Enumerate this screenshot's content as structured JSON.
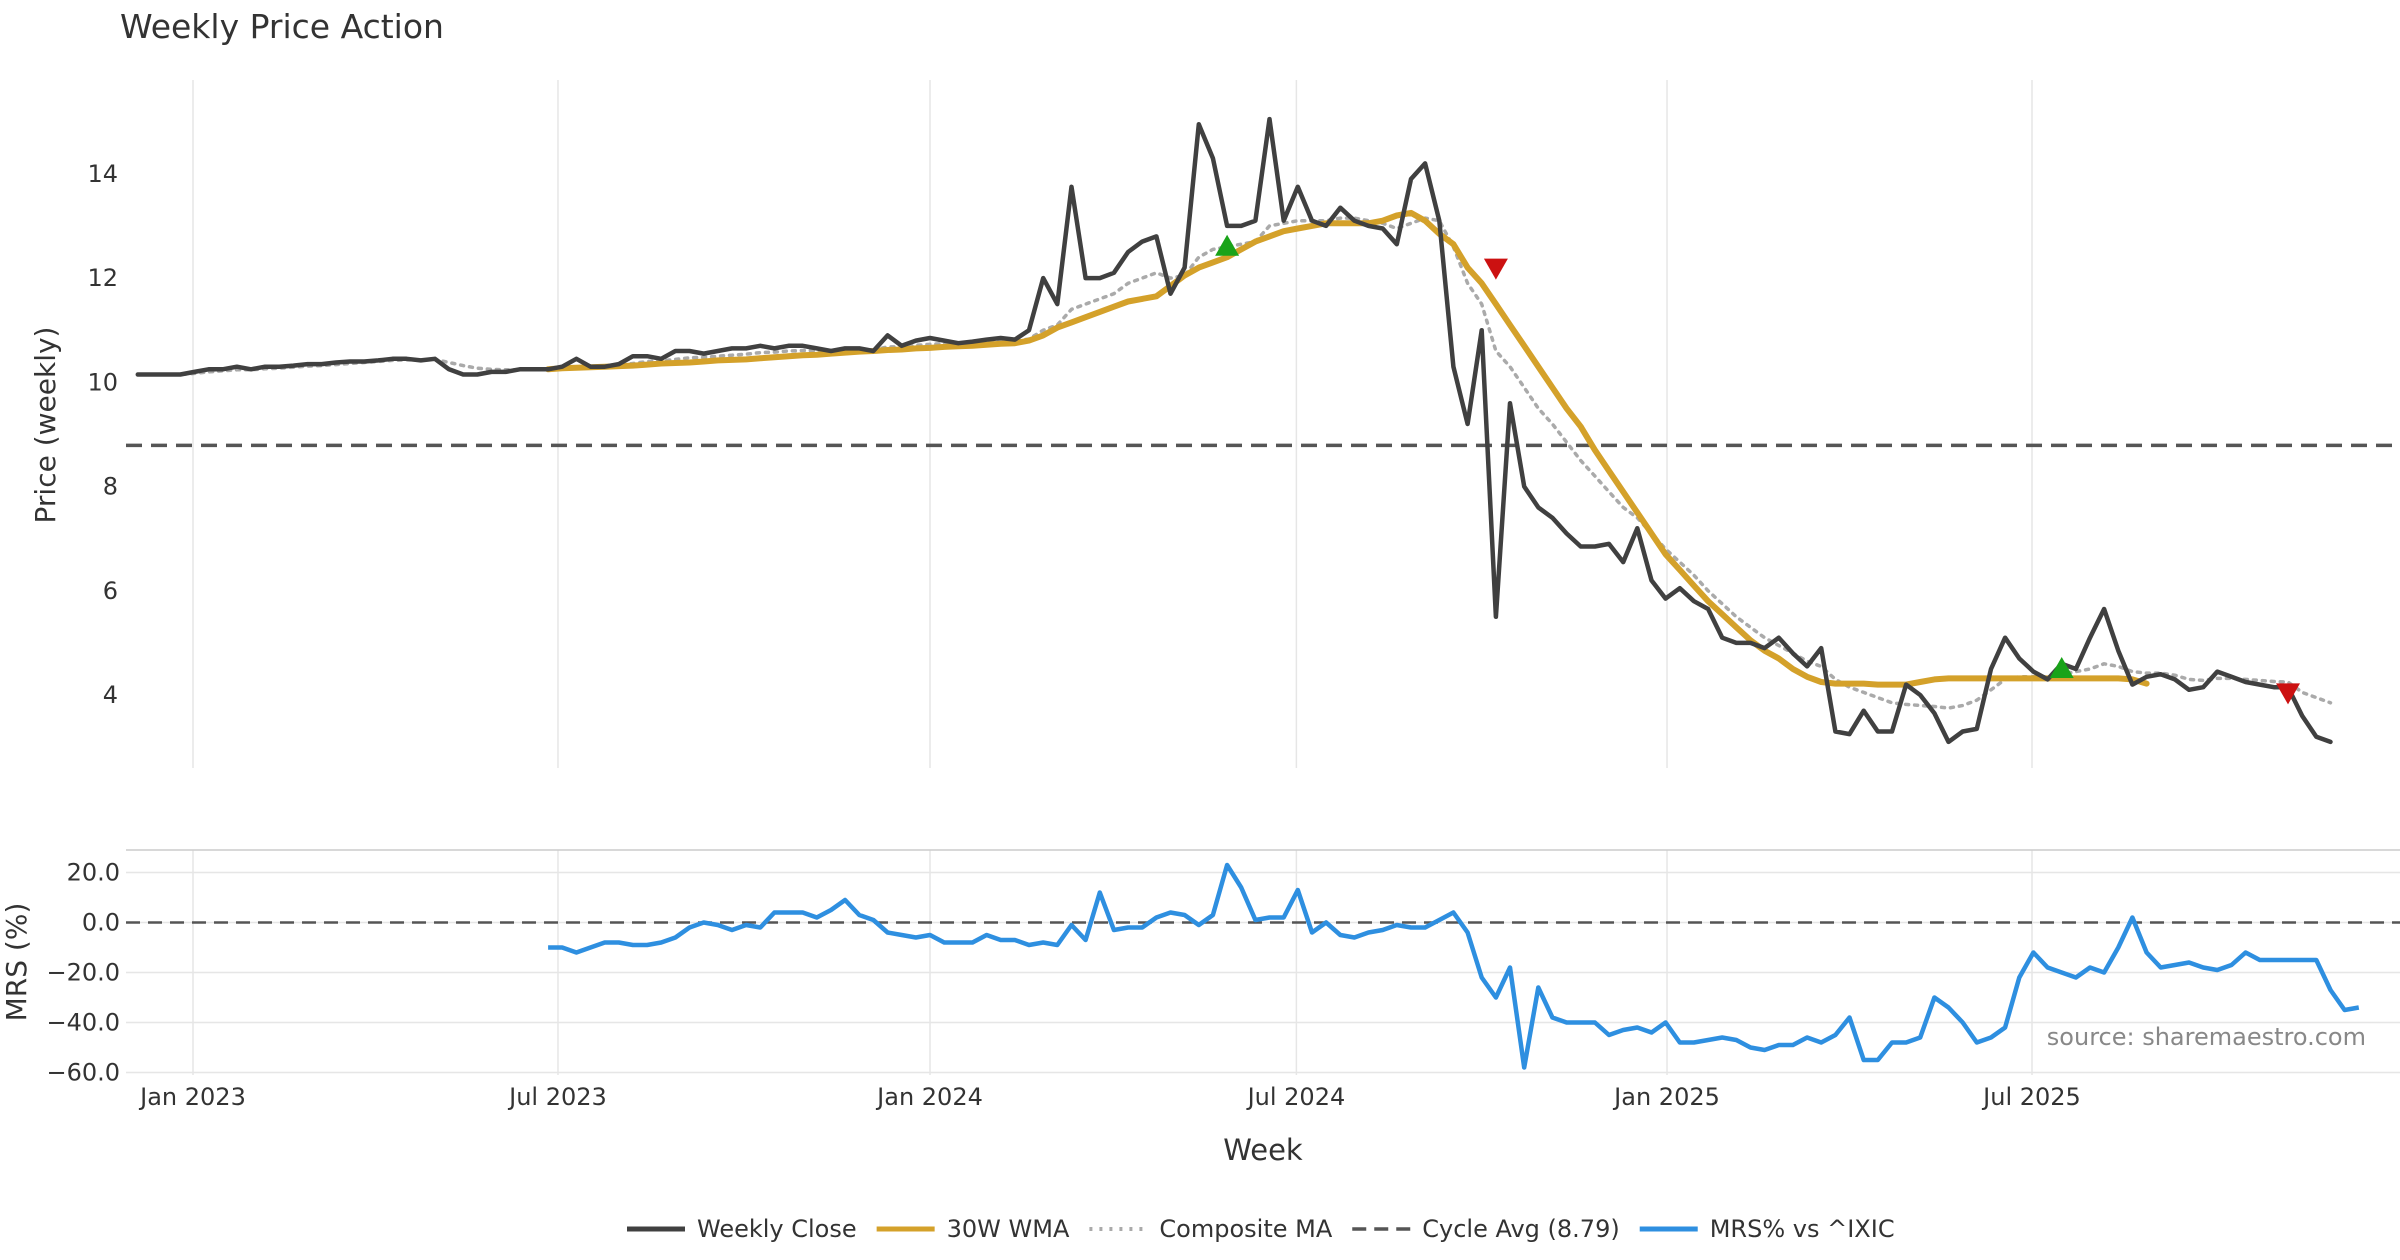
{
  "colors": {
    "close": "#404040",
    "wma": "#d4a12a",
    "composite": "#aaaaaa",
    "cycle": "#555555",
    "mrs": "#2e8fe0",
    "buy": "#19a319",
    "sell": "#cc1111",
    "grid": "#e6e6e6",
    "source": "#888888"
  },
  "chart_data": [
    {
      "type": "line",
      "panel": "price",
      "title": "Weekly Price Action",
      "xlabel": "Week",
      "ylabel": "Price (weekly)",
      "start_date": "2022-12-05",
      "week_step": 1,
      "xlim_weeks": [
        0,
        153
      ],
      "ylim": [
        2.6,
        15.8
      ],
      "yticks": [
        4,
        6,
        8,
        10,
        12,
        14
      ],
      "xticks": [
        {
          "label": "Jan 2023",
          "week": 3.9
        },
        {
          "label": "Jul 2023",
          "week": 29.7
        },
        {
          "label": "Jan 2024",
          "week": 56.0
        },
        {
          "label": "Jul 2024",
          "week": 81.9
        },
        {
          "label": "Jan 2025",
          "week": 108.1
        },
        {
          "label": "Jul 2025",
          "week": 133.9
        }
      ],
      "cycle_avg": 8.79,
      "series": [
        {
          "name": "Weekly Close",
          "key": "close",
          "values": [
            10.15,
            10.15,
            10.15,
            10.15,
            10.2,
            10.25,
            10.25,
            10.3,
            10.25,
            10.3,
            10.3,
            10.32,
            10.35,
            10.35,
            10.38,
            10.4,
            10.4,
            10.42,
            10.45,
            10.45,
            10.42,
            10.45,
            10.25,
            10.15,
            10.15,
            10.2,
            10.2,
            10.25,
            10.25,
            10.25,
            10.3,
            10.45,
            10.3,
            10.3,
            10.35,
            10.5,
            10.5,
            10.45,
            10.6,
            10.6,
            10.55,
            10.6,
            10.65,
            10.65,
            10.7,
            10.65,
            10.7,
            10.7,
            10.65,
            10.6,
            10.65,
            10.65,
            10.6,
            10.9,
            10.7,
            10.8,
            10.85,
            10.8,
            10.75,
            10.78,
            10.82,
            10.85,
            10.82,
            11.0,
            12.0,
            11.5,
            13.75,
            12.0,
            12.0,
            12.1,
            12.5,
            12.7,
            12.8,
            11.7,
            12.2,
            14.95,
            14.3,
            13.0,
            13.0,
            13.1,
            15.05,
            13.1,
            13.75,
            13.1,
            13.0,
            13.35,
            13.1,
            13.0,
            12.95,
            12.65,
            13.9,
            14.2,
            13.1,
            10.3,
            9.2,
            11.0,
            5.5,
            9.6,
            8.0,
            7.6,
            7.4,
            7.1,
            6.85,
            6.85,
            6.9,
            6.55,
            7.2,
            6.2,
            5.85,
            6.05,
            5.8,
            5.65,
            5.1,
            5.0,
            5.0,
            4.9,
            5.1,
            4.8,
            4.55,
            4.9,
            3.3,
            3.25,
            3.7,
            3.3,
            3.3,
            4.2,
            4.0,
            3.65,
            3.1,
            3.3,
            3.35,
            4.5,
            5.1,
            4.7,
            4.45,
            4.3,
            4.6,
            4.5,
            5.1,
            5.65,
            4.85,
            4.2,
            4.35,
            4.4,
            4.3,
            4.1,
            4.15,
            4.45,
            4.35,
            4.25,
            4.2,
            4.15,
            4.15,
            3.6,
            3.2,
            3.1
          ]
        },
        {
          "name": "30W WMA",
          "key": "wma",
          "start_week": 29,
          "values": [
            10.25,
            10.27,
            10.28,
            10.29,
            10.3,
            10.31,
            10.32,
            10.34,
            10.36,
            10.37,
            10.38,
            10.4,
            10.42,
            10.43,
            10.44,
            10.46,
            10.48,
            10.5,
            10.52,
            10.53,
            10.55,
            10.57,
            10.59,
            10.6,
            10.62,
            10.63,
            10.65,
            10.66,
            10.68,
            10.69,
            10.7,
            10.72,
            10.74,
            10.75,
            10.8,
            10.9,
            11.05,
            11.15,
            11.25,
            11.35,
            11.45,
            11.55,
            11.6,
            11.65,
            11.85,
            12.05,
            12.2,
            12.3,
            12.4,
            12.55,
            12.7,
            12.8,
            12.9,
            12.95,
            13.0,
            13.05,
            13.05,
            13.05,
            13.05,
            13.1,
            13.2,
            13.25,
            13.1,
            12.85,
            12.65,
            12.2,
            11.9,
            11.5,
            11.1,
            10.7,
            10.3,
            9.9,
            9.5,
            9.15,
            8.7,
            8.3,
            7.9,
            7.5,
            7.1,
            6.7,
            6.4,
            6.1,
            5.8,
            5.55,
            5.3,
            5.05,
            4.85,
            4.7,
            4.5,
            4.35,
            4.25,
            4.22,
            4.22,
            4.22,
            4.2,
            4.2,
            4.2,
            4.25,
            4.3,
            4.32,
            4.32,
            4.32,
            4.32,
            4.32,
            4.32,
            4.32,
            4.32,
            4.32,
            4.32,
            4.32,
            4.32,
            4.32,
            4.3,
            4.22
          ]
        },
        {
          "name": "Composite MA",
          "key": "composite",
          "values": [
            10.15,
            10.15,
            10.15,
            10.15,
            10.17,
            10.2,
            10.22,
            10.24,
            10.24,
            10.26,
            10.27,
            10.29,
            10.31,
            10.32,
            10.34,
            10.36,
            10.38,
            10.4,
            10.42,
            10.43,
            10.43,
            10.44,
            10.38,
            10.32,
            10.27,
            10.25,
            10.24,
            10.24,
            10.24,
            10.25,
            10.26,
            10.3,
            10.3,
            10.3,
            10.32,
            10.36,
            10.4,
            10.41,
            10.44,
            10.47,
            10.48,
            10.5,
            10.52,
            10.54,
            10.57,
            10.58,
            10.6,
            10.61,
            10.61,
            10.61,
            10.62,
            10.62,
            10.62,
            10.68,
            10.68,
            10.71,
            10.73,
            10.74,
            10.74,
            10.75,
            10.77,
            10.78,
            10.79,
            10.83,
            11.0,
            11.1,
            11.4,
            11.5,
            11.6,
            11.7,
            11.9,
            12.0,
            12.1,
            12.0,
            12.05,
            12.4,
            12.55,
            12.6,
            12.65,
            12.7,
            13.0,
            13.05,
            13.1,
            13.1,
            13.1,
            13.15,
            13.15,
            13.1,
            13.05,
            12.95,
            13.05,
            13.15,
            13.1,
            12.6,
            11.9,
            11.5,
            10.6,
            10.3,
            9.9,
            9.5,
            9.2,
            8.85,
            8.5,
            8.2,
            7.9,
            7.6,
            7.4,
            7.1,
            6.8,
            6.55,
            6.3,
            6.0,
            5.75,
            5.5,
            5.3,
            5.1,
            4.95,
            4.8,
            4.65,
            4.55,
            4.3,
            4.15,
            4.05,
            3.95,
            3.85,
            3.82,
            3.8,
            3.78,
            3.75,
            3.8,
            3.9,
            4.1,
            4.3,
            4.35,
            4.35,
            4.35,
            4.4,
            4.45,
            4.5,
            4.6,
            4.55,
            4.45,
            4.42,
            4.42,
            4.38,
            4.3,
            4.28,
            4.32,
            4.32,
            4.3,
            4.28,
            4.26,
            4.25,
            4.05,
            3.95,
            3.85
          ]
        }
      ],
      "signals": [
        {
          "type": "buy",
          "week": 77,
          "value": 12.6
        },
        {
          "type": "sell",
          "week": 96,
          "value": 12.2
        },
        {
          "type": "buy",
          "week": 136,
          "value": 4.5
        },
        {
          "type": "sell",
          "week": 152,
          "value": 4.05
        }
      ]
    },
    {
      "type": "line",
      "panel": "mrs",
      "ylabel": "MRS (%)",
      "ylim": [
        -61,
        29
      ],
      "yticks": [
        -60.0,
        -40.0,
        -20.0,
        0.0,
        20.0
      ],
      "ytick_labels": [
        "−60.0",
        "−40.0",
        "−20.0",
        "0.0",
        "20.0"
      ],
      "zero_line": 0,
      "series": [
        {
          "name": "MRS% vs ^IXIC",
          "key": "mrs",
          "start_week": 29,
          "values": [
            -10,
            -10,
            -12,
            -10,
            -8,
            -8,
            -9,
            -9,
            -8,
            -6,
            -2,
            0,
            -1,
            -3,
            -1,
            -2,
            4,
            4,
            4,
            2,
            5,
            9,
            3,
            1,
            -4,
            -5,
            -6,
            -5,
            -8,
            -8,
            -8,
            -5,
            -7,
            -7,
            -9,
            -8,
            -9,
            -1,
            -7,
            12,
            -3,
            -2,
            -2,
            2,
            4,
            3,
            -1,
            3,
            23,
            14,
            1,
            2,
            2,
            13,
            -4,
            0,
            -5,
            -6,
            -4,
            -3,
            -1,
            -2,
            -2,
            1,
            4,
            -4,
            -22,
            -30,
            -18,
            -58,
            -26,
            -38,
            -40,
            -40,
            -40,
            -45,
            -43,
            -42,
            -44,
            -40,
            -48,
            -48,
            -47,
            -46,
            -47,
            -50,
            -51,
            -49,
            -49,
            -46,
            -48,
            -45,
            -38,
            -55,
            -55,
            -48,
            -48,
            -46,
            -30,
            -34,
            -40,
            -48,
            -46,
            -42,
            -22,
            -12,
            -18,
            -20,
            -22,
            -18,
            -20,
            -10,
            2,
            -12,
            -18,
            -17,
            -16,
            -18,
            -19,
            -17,
            -12,
            -15,
            -15,
            -15,
            -15,
            -15,
            -27,
            -35,
            -34
          ]
        }
      ],
      "annotation": "source: sharemaestro.com"
    }
  ],
  "legend": [
    {
      "label": "Weekly Close",
      "key": "close",
      "style": "solid"
    },
    {
      "label": "30W WMA",
      "key": "wma",
      "style": "solid"
    },
    {
      "label": "Composite MA",
      "key": "composite",
      "style": "dotted"
    },
    {
      "label": "Cycle Avg (8.79)",
      "key": "cycle",
      "style": "dashed"
    },
    {
      "label": "MRS% vs ^IXIC",
      "key": "mrs",
      "style": "solid"
    }
  ]
}
